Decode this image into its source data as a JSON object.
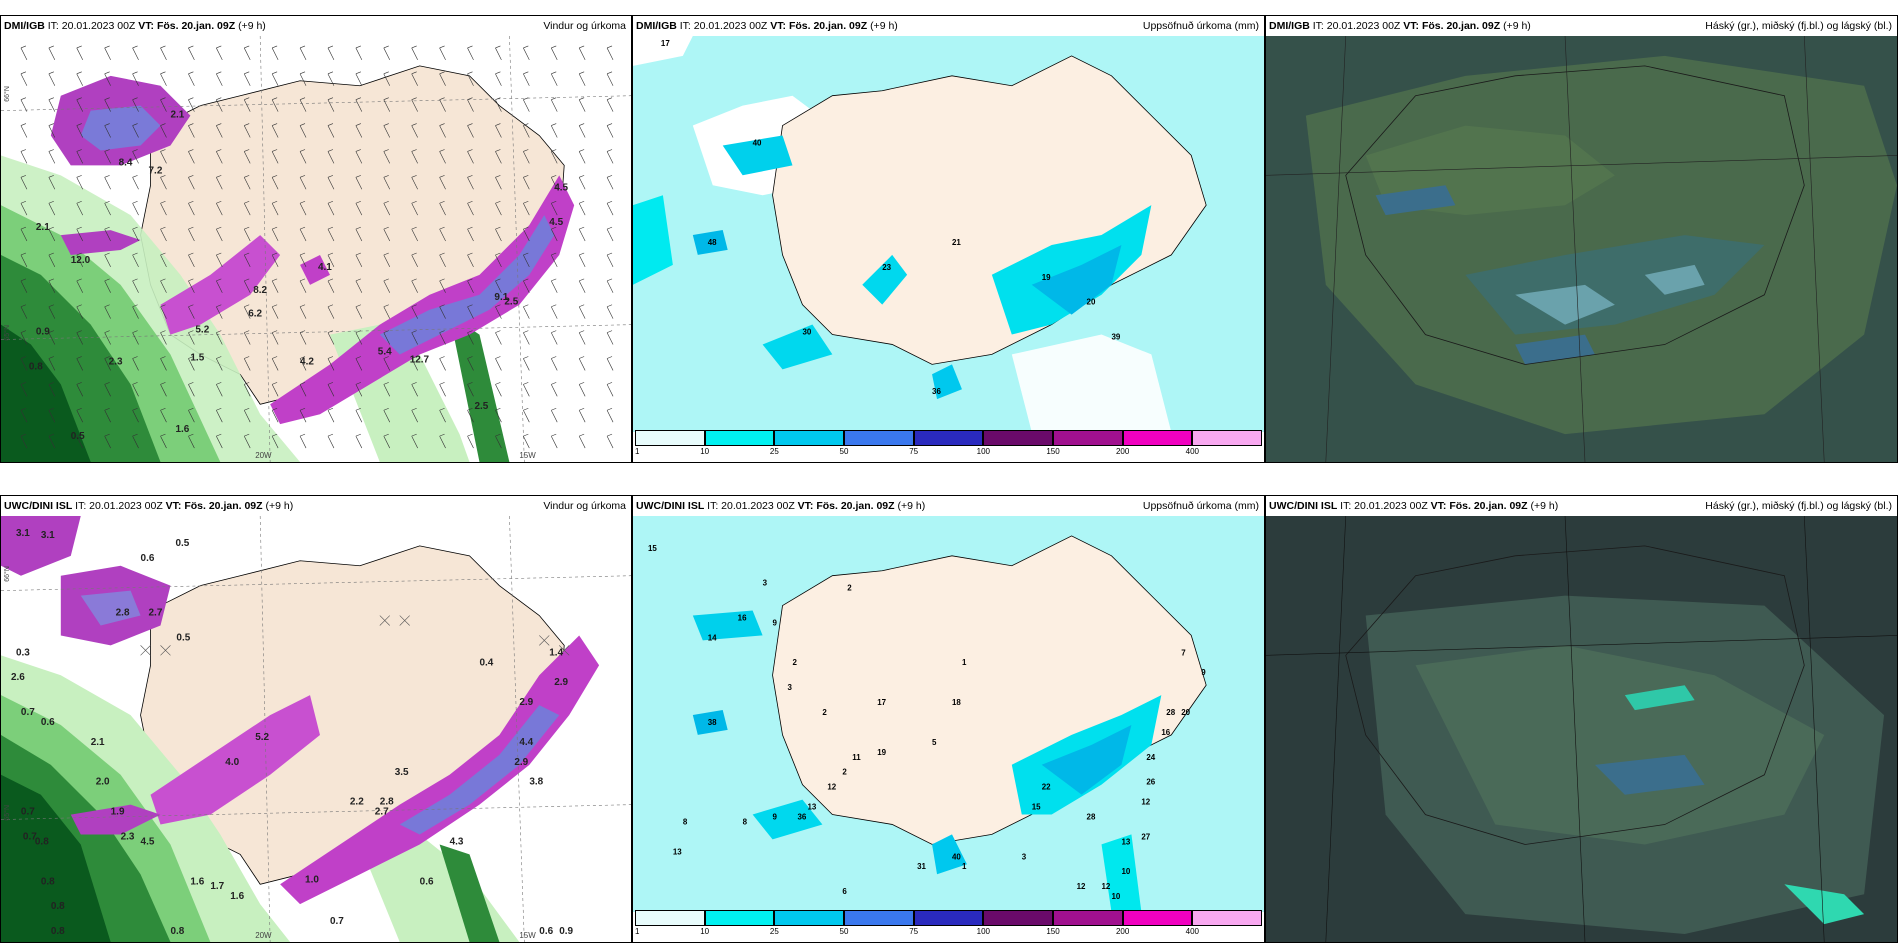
{
  "panels": {
    "dmi_wind": {
      "model": "DMI/IGB",
      "it": "IT: 20.01.2023 00Z",
      "vt_label": "VT:",
      "vt": "Fös. 20.jan. 09Z",
      "lead": "(+9 h)",
      "title": "Vindur og úrkoma"
    },
    "dmi_precip": {
      "model": "DMI/IGB",
      "it": "IT: 20.01.2023 00Z",
      "vt_label": "VT:",
      "vt": "Fös. 20.jan. 09Z",
      "lead": "(+9 h)",
      "title": "Uppsöfnuð úrkoma (mm)"
    },
    "dmi_cloud": {
      "model": "DMI/IGB",
      "it": "IT: 20.01.2023 00Z",
      "vt_label": "VT:",
      "vt": "Fös. 20.jan. 09Z",
      "lead": "(+9 h)",
      "title": "Háský (gr.), miðský (fj.bl.) og lágský (bl.)"
    },
    "uwc_wind": {
      "model": "UWC/DINI ISL",
      "it": "IT: 20.01.2023 00Z",
      "vt_label": "VT:",
      "vt": "Fös. 20.jan. 09Z",
      "lead": "(+9 h)",
      "title": "Vindur og úrkoma"
    },
    "uwc_precip": {
      "model": "UWC/DINI ISL",
      "it": "IT: 20.01.2023 00Z",
      "vt_label": "VT:",
      "vt": "Fös. 20.jan. 09Z",
      "lead": "(+9 h)",
      "title": "Uppsöfnuð úrkoma (mm)"
    },
    "uwc_cloud": {
      "model": "UWC/DINI ISL",
      "it": "IT: 20.01.2023 00Z",
      "vt_label": "VT:",
      "vt": "Fös. 20.jan. 09Z",
      "lead": "(+9 h)",
      "title": "Háský (gr.), miðský (fj.bl.) og lágský (bl.)"
    }
  },
  "gridlabels": {
    "lat66": "66°N",
    "lat65": "65°N",
    "lon20": "20W",
    "lon15": "15W"
  },
  "colorbar": {
    "ticks": [
      "1",
      "10",
      "25",
      "50",
      "75",
      "100",
      "150",
      "200",
      "400"
    ],
    "colors": [
      "#e8fcfc",
      "#00f0f0",
      "#00c8ee",
      "#3a78ee",
      "#2a2abe",
      "#6a0a6a",
      "#a0108f",
      "#f000c0",
      "#f8a8f0"
    ]
  },
  "dmi_wind_labels": [
    "2.1",
    "8.4",
    "7.2",
    "2.1",
    "12.0",
    "0.9",
    "0.8",
    "2.3",
    "0.5",
    "1.6",
    "5.2",
    "1.5",
    "4.1",
    "8.2",
    "6.2",
    "4.2",
    "9.1",
    "5.4",
    "12.7",
    "4.5",
    "4.5",
    "2.5",
    "2.5"
  ],
  "uwc_wind_labels": [
    "3.1",
    "3.1",
    "0.5",
    "0.6",
    "2.7",
    "2.8",
    "0.5",
    "0.3",
    "2.6",
    "0.7",
    "0.6",
    "2.1",
    "2.0",
    "1.9",
    "0.7",
    "0.7",
    "0.8",
    "2.3",
    "4.5",
    "0.8",
    "0.8",
    "1.6",
    "1.7",
    "1.6",
    "0.8",
    "0.8",
    "1.0",
    "4.0",
    "5.2",
    "3.5",
    "2.8",
    "2.7",
    "2.2",
    "0.6",
    "4.3",
    "2.9",
    "4.4",
    "2.9",
    "3.8",
    "2.9",
    "1.4",
    "0.9",
    "0.6",
    "0.7",
    "0.4"
  ],
  "dmi_precip_labels": [
    "17",
    "40",
    "48",
    "23",
    "21",
    "30",
    "19",
    "20",
    "36",
    "39"
  ],
  "uwc_precip_labels": [
    "15",
    "3",
    "2",
    "16",
    "14",
    "9",
    "2",
    "3",
    "1",
    "2",
    "38",
    "17",
    "18",
    "13",
    "19",
    "36",
    "12",
    "11",
    "2",
    "5",
    "22",
    "15",
    "28",
    "24",
    "16",
    "20",
    "12",
    "13",
    "10",
    "3",
    "1",
    "6",
    "6",
    "9",
    "8",
    "8",
    "13",
    "40",
    "31",
    "12",
    "10",
    "12",
    "27",
    "26",
    "28",
    "7",
    "9"
  ]
}
